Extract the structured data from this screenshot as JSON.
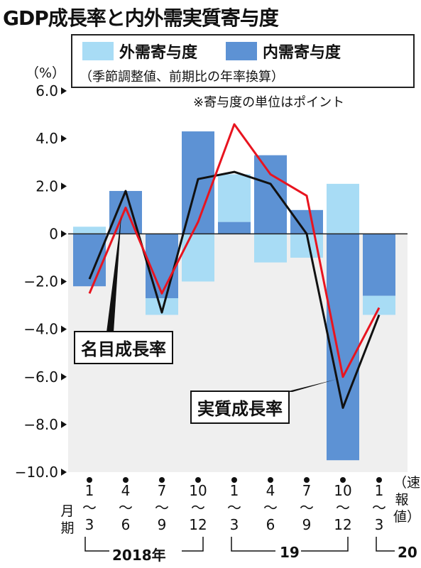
{
  "title": "GDP成長率と内外需実質寄与度",
  "legend": {
    "external_label": "外需寄与度",
    "domestic_label": "内需寄与度",
    "note": "（季節調整値、前期比の年率換算）"
  },
  "footnote": "※寄与度の単位はポイント",
  "y_unit": "（%）",
  "colors": {
    "external": "#a8dcf5",
    "domestic": "#5d92d4",
    "nominal": "#e8141f",
    "real": "#111111",
    "negative_bg": "#efefef"
  },
  "callouts": {
    "nominal": "名目成長率",
    "real": "実質成長率"
  },
  "x_axis": {
    "quarters": [
      "1〜3",
      "4〜6",
      "7〜9",
      "10〜12",
      "1〜3",
      "4〜6",
      "7〜9",
      "10〜12",
      "1〜3"
    ],
    "month_unit": "月期",
    "preliminary": "（速報値）",
    "years": [
      "2018年",
      "19",
      "20"
    ]
  },
  "chart_data": {
    "type": "bar",
    "ylim": [
      -10.0,
      6.0
    ],
    "yticks": [
      "6.0",
      "4.0",
      "2.0",
      "0",
      "−2.0",
      "−4.0",
      "−6.0",
      "−8.0",
      "−10.0"
    ],
    "categories": [
      "2018 1〜3",
      "2018 4〜6",
      "2018 7〜9",
      "2018 10〜12",
      "2019 1〜3",
      "2019 4〜6",
      "2019 7〜9",
      "2019 10〜12",
      "2020 1〜3"
    ],
    "series": [
      {
        "name": "外需寄与度",
        "type": "bar",
        "values": [
          0.3,
          0.0,
          -0.7,
          -2.0,
          2.0,
          -1.2,
          -1.0,
          2.1,
          -0.8
        ]
      },
      {
        "name": "内需寄与度",
        "type": "bar",
        "values": [
          -2.2,
          1.8,
          -2.7,
          4.3,
          0.5,
          3.3,
          1.0,
          -9.5,
          -2.6
        ]
      },
      {
        "name": "名目成長率",
        "type": "line",
        "values": [
          -2.5,
          1.1,
          -2.5,
          0.5,
          4.6,
          2.5,
          1.6,
          -6.0,
          -3.1
        ]
      },
      {
        "name": "実質成長率",
        "type": "line",
        "values": [
          -1.9,
          1.8,
          -3.3,
          2.3,
          2.6,
          2.1,
          0.0,
          -7.3,
          -3.4
        ]
      }
    ]
  }
}
